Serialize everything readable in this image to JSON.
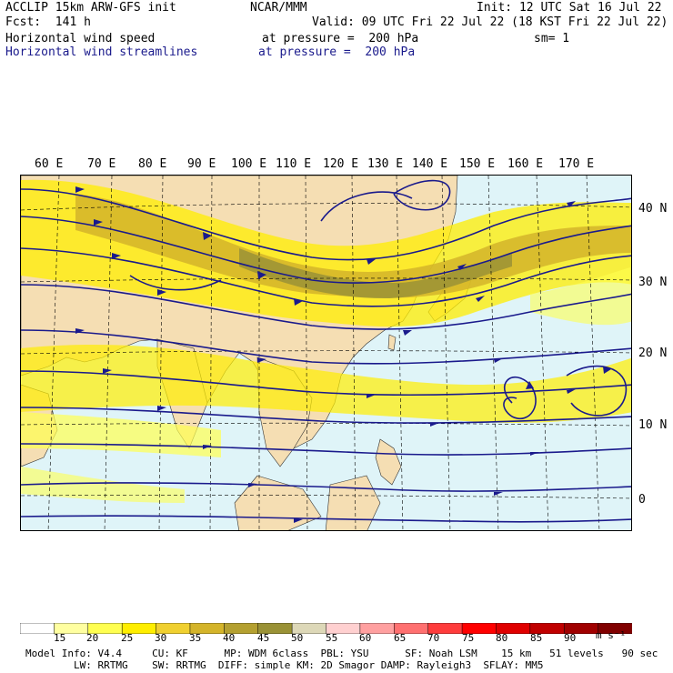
{
  "header": {
    "line1_left": "ACCLIP 15km ARW-GFS init",
    "line1_mid": "NCAR/MMM",
    "line1_right": "Init: 12 UTC Sat 16 Jul 22",
    "line2_left": "Fcst:  141 h",
    "line2_right": "Valid: 09 UTC Fri 22 Jul 22 (18 KST Fri 22 Jul 22)",
    "line3_left": "Horizontal wind speed",
    "line3_mid": "at pressure =  200 hPa",
    "line3_right": "sm= 1",
    "line4_left": "Horizontal wind streamlines",
    "line4_mid": "at pressure =  200 hPa"
  },
  "lon_labels": [
    "60 E",
    "70 E",
    "80 E",
    "90 E",
    "100 E",
    "110 E",
    "120 E",
    "130 E",
    "140 E",
    "150 E",
    "160 E",
    "170 E"
  ],
  "lat_labels": [
    "40 N",
    "30 N",
    "20 N",
    "10 N",
    "0"
  ],
  "colorbar": {
    "labels": [
      "15",
      "20",
      "25",
      "30",
      "35",
      "40",
      "45",
      "50",
      "55",
      "60",
      "65",
      "70",
      "75",
      "80",
      "85",
      "90"
    ],
    "unit": "m s⁻¹",
    "colors": [
      "#ffffff",
      "#ffffa0",
      "#ffff50",
      "#ffee00",
      "#f0d030",
      "#d4b42a",
      "#b4a030",
      "#9a9236",
      "#ddd8b8",
      "#ffd0d0",
      "#ffa0a0",
      "#ff7070",
      "#ff3c3c",
      "#ff0000",
      "#e00000",
      "#c00000",
      "#a00000",
      "#800000"
    ]
  },
  "footer": {
    "line1": "Model Info: V4.4     CU: KF      MP: WDM 6class  PBL: YSU      SF: Noah LSM    15 km   51 levels   90 sec",
    "line2": "        LW: RRTMG    SW: RRTMG  DIFF: simple KM: 2D Smagor DAMP: Rayleigh3  SFLAY: MM5"
  },
  "map": {
    "ocean_color": "#dff4f8",
    "land_color": "#f5deb3",
    "streamline_color": "#1a1a8c"
  }
}
